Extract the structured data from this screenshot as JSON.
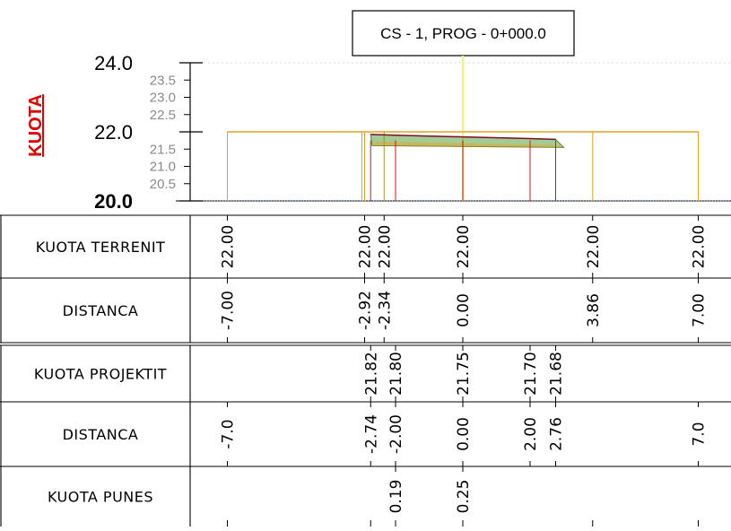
{
  "title": "CS - 1, PROG - 0+000.0",
  "y_axis_label": "KUOTA",
  "y_ticks_major": [
    "24.0",
    "22.0",
    "20.0"
  ],
  "y_ticks_minor": [
    "23.5",
    "23.0",
    "22.5",
    "21.5",
    "21.0",
    "20.5"
  ],
  "colors": {
    "centerline": "#f4f36a",
    "terrain": "#e8a020",
    "red_line": "#d81010",
    "project_fill": "#5aa040",
    "axis_label": "#e00000"
  },
  "rows": [
    {
      "key": "terrain_elev",
      "label": "KUOTA TERRENIT",
      "values": [
        {
          "offset": -7.0,
          "text": "22.00"
        },
        {
          "offset": -2.92,
          "text": "22.00"
        },
        {
          "offset": -2.34,
          "text": "22.00"
        },
        {
          "offset": 0.0,
          "text": "22.00"
        },
        {
          "offset": 3.86,
          "text": "22.00"
        },
        {
          "offset": 7.0,
          "text": "22.00"
        }
      ]
    },
    {
      "key": "terrain_dist",
      "label": "DISTANCA",
      "values": [
        {
          "offset": -7.0,
          "text": "-7.00"
        },
        {
          "offset": -2.92,
          "text": "-2.92"
        },
        {
          "offset": -2.34,
          "text": "-2.34"
        },
        {
          "offset": 0.0,
          "text": "0.00"
        },
        {
          "offset": 3.86,
          "text": "3.86"
        },
        {
          "offset": 7.0,
          "text": "7.00"
        }
      ]
    },
    {
      "key": "project_elev",
      "label": "KUOTA PROJEKTIT",
      "values": [
        {
          "offset": -2.74,
          "text": "21.82"
        },
        {
          "offset": -2.0,
          "text": "21.80"
        },
        {
          "offset": 0.0,
          "text": "21.75"
        },
        {
          "offset": 2.0,
          "text": "21.70"
        },
        {
          "offset": 2.76,
          "text": "21.68"
        }
      ]
    },
    {
      "key": "project_dist",
      "label": "DISTANCA",
      "values": [
        {
          "offset": -7.0,
          "text": "-7.0"
        },
        {
          "offset": -2.74,
          "text": "-2.74"
        },
        {
          "offset": -2.0,
          "text": "-2.00"
        },
        {
          "offset": 0.0,
          "text": "0.00"
        },
        {
          "offset": 2.0,
          "text": "2.00"
        },
        {
          "offset": 2.76,
          "text": "2.76"
        },
        {
          "offset": 7.0,
          "text": "7.0"
        }
      ]
    },
    {
      "key": "work_elev",
      "label": "KUOTA PUNES",
      "values": [
        {
          "offset": -2.0,
          "text": "0.19"
        },
        {
          "offset": 0.0,
          "text": "0.25"
        }
      ]
    }
  ],
  "chart_data": {
    "type": "line",
    "ylim": [
      20.0,
      24.0
    ],
    "xlim": [
      -7.0,
      7.0
    ],
    "terrain": {
      "x": [
        -7.0,
        -2.92,
        -2.34,
        0.0,
        3.86,
        7.0
      ],
      "y": [
        22.0,
        22.0,
        22.0,
        22.0,
        22.0,
        22.0
      ]
    },
    "project": {
      "x": [
        -2.74,
        -2.0,
        0.0,
        2.0,
        2.76
      ],
      "y": [
        21.82,
        21.8,
        21.75,
        21.7,
        21.68
      ]
    }
  }
}
